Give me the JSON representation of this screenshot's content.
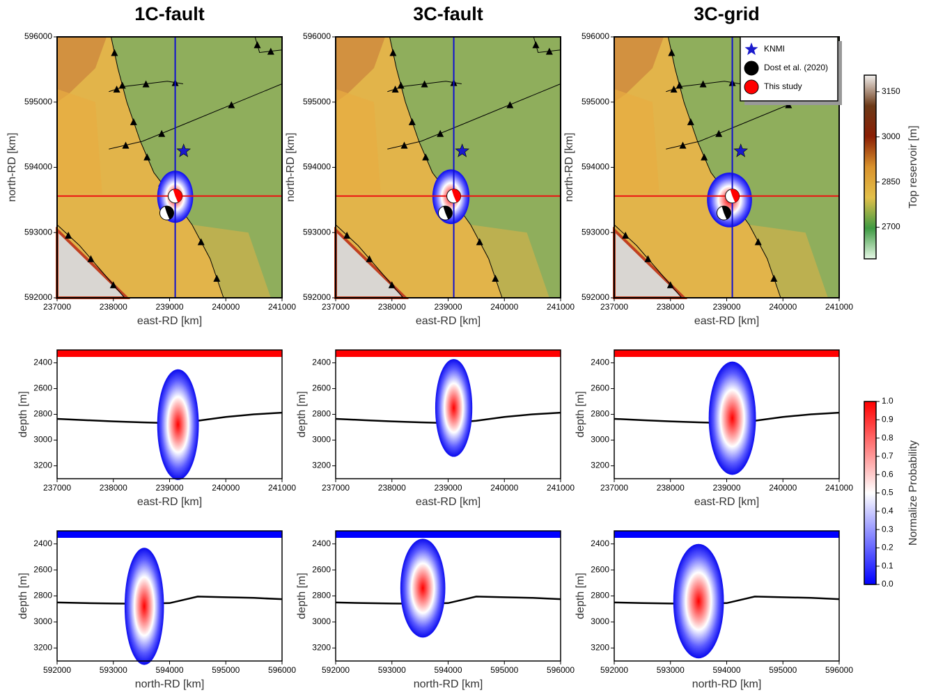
{
  "chart_data": [
    {
      "type": "map",
      "title": "1C-fault",
      "xlabel": "east-RD [km]",
      "ylabel": "north-RD [km]",
      "xlim": [
        237000,
        241000
      ],
      "ylim": [
        592000,
        596000
      ],
      "xticks": [
        237000,
        238000,
        239000,
        240000,
        241000
      ],
      "yticks": [
        592000,
        593000,
        594000,
        595000,
        596000
      ],
      "profile_x": 239100,
      "profile_y": 593560,
      "cloud": {
        "x": 239100,
        "y": 593550,
        "rx": 320,
        "ry": 400
      },
      "series": [
        {
          "name": "KNMI",
          "color": "#1a1acc",
          "x": [
            239250
          ],
          "y": [
            594250
          ]
        },
        {
          "name": "Dost et al. (2020)",
          "color": "#000000",
          "x": [
            238950
          ],
          "y": [
            593300
          ]
        },
        {
          "name": "This study",
          "color": "#ff0000",
          "x": [
            239100
          ],
          "y": [
            593560
          ]
        }
      ]
    },
    {
      "type": "map",
      "title": "3C-fault",
      "xlabel": "east-RD [km]",
      "ylabel": "north-RD [km]",
      "xlim": [
        237000,
        241000
      ],
      "ylim": [
        592000,
        596000
      ],
      "xticks": [
        237000,
        238000,
        239000,
        240000,
        241000
      ],
      "yticks": [
        592000,
        593000,
        594000,
        595000,
        596000
      ],
      "profile_x": 239100,
      "profile_y": 593560,
      "cloud": {
        "x": 239050,
        "y": 593550,
        "rx": 330,
        "ry": 420
      },
      "series": [
        {
          "name": "KNMI",
          "color": "#1a1acc",
          "x": [
            239250
          ],
          "y": [
            594250
          ]
        },
        {
          "name": "Dost et al. (2020)",
          "color": "#000000",
          "x": [
            238950
          ],
          "y": [
            593300
          ]
        },
        {
          "name": "This study",
          "color": "#ff0000",
          "x": [
            239100
          ],
          "y": [
            593560
          ]
        }
      ]
    },
    {
      "type": "map",
      "title": "3C-grid",
      "xlabel": "east-RD [km]",
      "ylabel": "north-RD [km]",
      "xlim": [
        237000,
        241000
      ],
      "ylim": [
        592000,
        596000
      ],
      "xticks": [
        237000,
        238000,
        239000,
        240000,
        241000
      ],
      "yticks": [
        592000,
        593000,
        594000,
        595000,
        596000
      ],
      "profile_x": 239100,
      "profile_y": 593560,
      "legend": "upper right",
      "cloud": {
        "x": 239050,
        "y": 593500,
        "rx": 400,
        "ry": 420
      },
      "series": [
        {
          "name": "KNMI",
          "color": "#1a1acc",
          "x": [
            239250
          ],
          "y": [
            594250
          ]
        },
        {
          "name": "Dost et al. (2020)",
          "color": "#000000",
          "x": [
            238950
          ],
          "y": [
            593300
          ]
        },
        {
          "name": "This study",
          "color": "#ff0000",
          "x": [
            239100
          ],
          "y": [
            593560
          ]
        }
      ]
    },
    {
      "type": "section",
      "xlabel": "east-RD [km]",
      "ylabel": "depth [m]",
      "bar_color": "#ff0000",
      "xlim": [
        237000,
        241000
      ],
      "ylim": [
        2300,
        3300
      ],
      "xticks": [
        237000,
        238000,
        239000,
        240000,
        241000
      ],
      "yticks": [
        2400,
        2600,
        2800,
        3000,
        3200
      ],
      "cloud": {
        "x": 239150,
        "y": 2880,
        "rx": 370,
        "ry": 430
      },
      "reservoir": {
        "x": [
          237000,
          237500,
          238000,
          238500,
          239000,
          239500,
          240000,
          240500,
          241000
        ],
        "y": [
          2835,
          2845,
          2855,
          2862,
          2868,
          2850,
          2820,
          2800,
          2787
        ]
      }
    },
    {
      "type": "section",
      "xlabel": "east-RD [km]",
      "ylabel": "depth [m]",
      "bar_color": "#ff0000",
      "xlim": [
        237000,
        241000
      ],
      "ylim": [
        2300,
        3300
      ],
      "xticks": [
        237000,
        238000,
        239000,
        240000,
        241000
      ],
      "yticks": [
        2400,
        2600,
        2800,
        3000,
        3200
      ],
      "cloud": {
        "x": 239100,
        "y": 2750,
        "rx": 330,
        "ry": 380
      },
      "reservoir": {
        "x": [
          237000,
          237500,
          238000,
          238500,
          239000,
          239500,
          240000,
          240500,
          241000
        ],
        "y": [
          2835,
          2845,
          2855,
          2862,
          2868,
          2850,
          2820,
          2800,
          2787
        ]
      }
    },
    {
      "type": "section",
      "xlabel": "east-RD [km]",
      "ylabel": "depth [m]",
      "bar_color": "#ff0000",
      "xlim": [
        237000,
        241000
      ],
      "ylim": [
        2300,
        3300
      ],
      "xticks": [
        237000,
        238000,
        239000,
        240000,
        241000
      ],
      "yticks": [
        2400,
        2600,
        2800,
        3000,
        3200
      ],
      "cloud": {
        "x": 239100,
        "y": 2830,
        "rx": 420,
        "ry": 440
      },
      "reservoir": {
        "x": [
          237000,
          237500,
          238000,
          238500,
          239000,
          239500,
          240000,
          240500,
          241000
        ],
        "y": [
          2835,
          2845,
          2855,
          2862,
          2868,
          2850,
          2820,
          2800,
          2787
        ]
      }
    },
    {
      "type": "section",
      "xlabel": "north-RD [km]",
      "ylabel": "depth [m]",
      "bar_color": "#0000ff",
      "xlim": [
        592000,
        596000
      ],
      "ylim": [
        2300,
        3300
      ],
      "xticks": [
        592000,
        593000,
        594000,
        595000,
        596000
      ],
      "yticks": [
        2400,
        2600,
        2800,
        3000,
        3200
      ],
      "cloud": {
        "x": 593550,
        "y": 2880,
        "rx": 350,
        "ry": 450
      },
      "reservoir": {
        "x": [
          592000,
          592500,
          593000,
          593500,
          594000,
          594500,
          595000,
          595500,
          596000
        ],
        "y": [
          2850,
          2855,
          2858,
          2860,
          2855,
          2805,
          2810,
          2815,
          2825
        ]
      }
    },
    {
      "type": "section",
      "xlabel": "north-RD [km]",
      "ylabel": "depth [m]",
      "bar_color": "#0000ff",
      "xlim": [
        592000,
        596000
      ],
      "ylim": [
        2300,
        3300
      ],
      "xticks": [
        592000,
        593000,
        594000,
        595000,
        596000
      ],
      "yticks": [
        2400,
        2600,
        2800,
        3000,
        3200
      ],
      "cloud": {
        "x": 593550,
        "y": 2740,
        "rx": 400,
        "ry": 380
      },
      "reservoir": {
        "x": [
          592000,
          592500,
          593000,
          593500,
          594000,
          594500,
          595000,
          595500,
          596000
        ],
        "y": [
          2850,
          2855,
          2858,
          2860,
          2855,
          2805,
          2810,
          2815,
          2825
        ]
      }
    },
    {
      "type": "section",
      "xlabel": "north-RD [km]",
      "ylabel": "depth [m]",
      "bar_color": "#0000ff",
      "xlim": [
        592000,
        596000
      ],
      "ylim": [
        2300,
        3300
      ],
      "xticks": [
        592000,
        593000,
        594000,
        595000,
        596000
      ],
      "yticks": [
        2400,
        2600,
        2800,
        3000,
        3200
      ],
      "cloud": {
        "x": 593500,
        "y": 2840,
        "rx": 450,
        "ry": 440
      },
      "reservoir": {
        "x": [
          592000,
          592500,
          593000,
          593500,
          594000,
          594500,
          595000,
          595500,
          596000
        ],
        "y": [
          2850,
          2855,
          2858,
          2860,
          2855,
          2805,
          2810,
          2815,
          2825
        ]
      }
    },
    {
      "type": "colorbar",
      "label": "Top reservoir [m]",
      "ylim": [
        2595,
        3205
      ],
      "yticks": [
        2700,
        2850,
        3000,
        3150
      ],
      "colors": [
        "#e6f8e6",
        "#3e9a42",
        "#e3c04a",
        "#d9922c",
        "#8a1e04",
        "#6c3a18",
        "#f2f0ee"
      ]
    },
    {
      "type": "colorbar",
      "label": "Normalize Probability",
      "ylim": [
        0,
        1
      ],
      "yticks": [
        {
          "value": 0,
          "label": "0.0"
        },
        0.1,
        0.2,
        0.3,
        0.4,
        0.5,
        0.6,
        0.7,
        0.8,
        0.9,
        {
          "value": 1,
          "label": "1.0"
        }
      ],
      "colors": [
        "#0000ff",
        "#ffffff",
        "#ff0000"
      ]
    }
  ]
}
